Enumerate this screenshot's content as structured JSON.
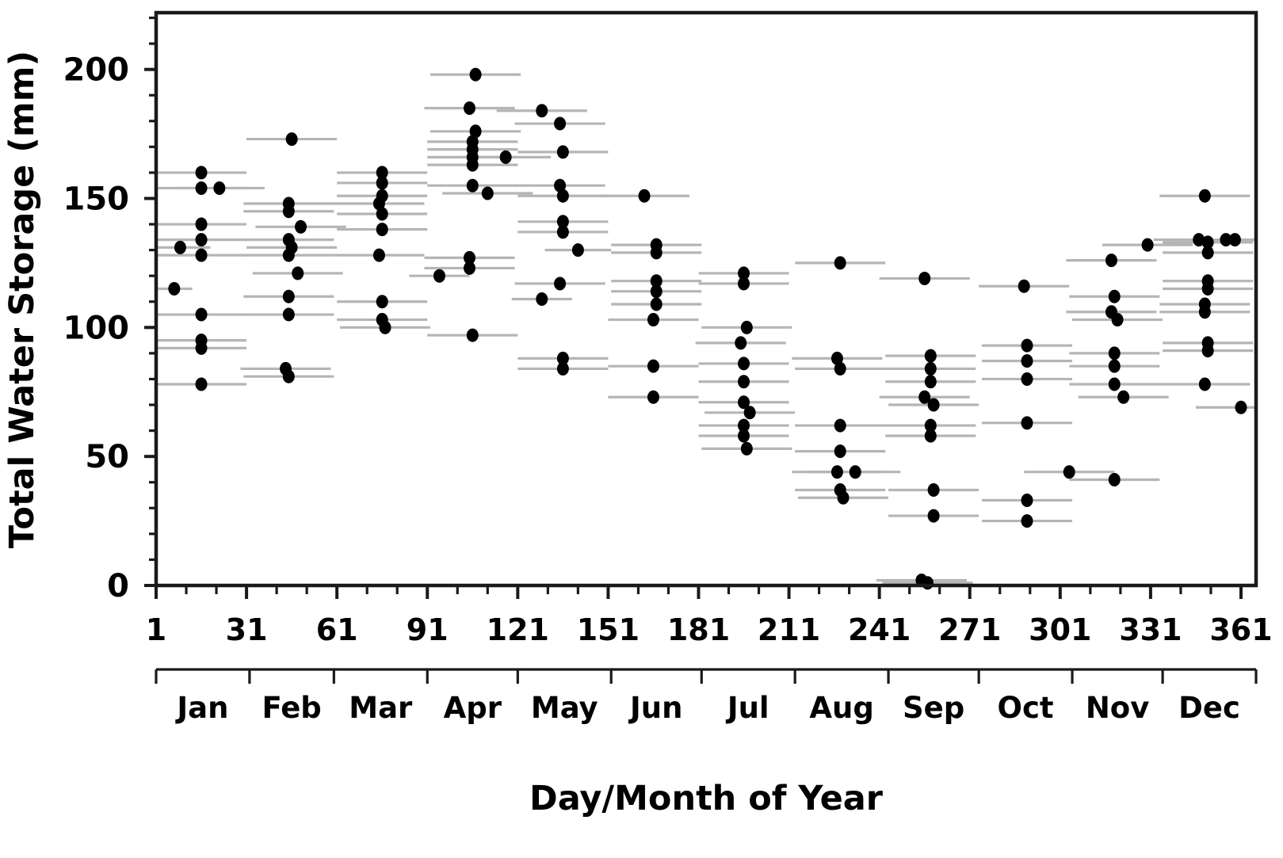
{
  "figure": {
    "xlabel": "Day/Month of Year",
    "ylabel": "Total Water Storage (mm)"
  },
  "chart_data": {
    "type": "scatter",
    "title": "",
    "xlabel": "Day/Month of Year",
    "ylabel": "Total Water Storage (mm)",
    "xlim": [
      1,
      366
    ],
    "ylim": [
      0,
      222
    ],
    "grid": false,
    "legend": null,
    "x_axis": {
      "major_tick_values": [
        1,
        31,
        61,
        91,
        121,
        151,
        181,
        211,
        241,
        271,
        301,
        331,
        361
      ],
      "minor_step_days": 10
    },
    "y_axis": {
      "major_tick_values": [
        0,
        50,
        100,
        150,
        200
      ],
      "minor_step_mm": 10
    },
    "month_axis": {
      "labels": [
        "Jan",
        "Feb",
        "Mar",
        "Apr",
        "May",
        "Jun",
        "Jul",
        "Aug",
        "Sep",
        "Oct",
        "Nov",
        "Dec"
      ],
      "boundaries": [
        1,
        32,
        60,
        91,
        121,
        152,
        182,
        213,
        244,
        274,
        305,
        335,
        366
      ]
    },
    "style": {
      "point_color": "#000000",
      "errorbar_color": "#b5b5b5",
      "axis_color": "#1a1a1a",
      "default_xerr_days": 15,
      "point_rx": 7.5,
      "point_ry": 8.5
    },
    "points_note": "each point = [day_of_year, total_water_storage_mm, optional_xerr_halfwidth_days]",
    "points": [
      [
        16,
        160
      ],
      [
        16,
        154
      ],
      [
        22,
        154
      ],
      [
        16,
        140
      ],
      [
        16,
        134
      ],
      [
        9,
        131,
        10
      ],
      [
        16,
        128
      ],
      [
        7,
        115,
        6
      ],
      [
        16,
        105
      ],
      [
        16,
        95
      ],
      [
        16,
        92
      ],
      [
        16,
        78
      ],
      [
        46,
        173
      ],
      [
        45,
        148
      ],
      [
        45,
        145
      ],
      [
        49,
        139
      ],
      [
        45,
        134
      ],
      [
        46,
        131
      ],
      [
        45,
        128
      ],
      [
        48,
        121
      ],
      [
        45,
        112
      ],
      [
        45,
        105
      ],
      [
        44,
        84
      ],
      [
        45,
        81
      ],
      [
        76,
        160
      ],
      [
        76,
        156
      ],
      [
        76,
        151
      ],
      [
        75,
        148
      ],
      [
        76,
        144
      ],
      [
        76,
        138
      ],
      [
        75,
        128
      ],
      [
        76,
        110
      ],
      [
        76,
        103
      ],
      [
        77,
        100
      ],
      [
        107,
        198
      ],
      [
        105,
        185
      ],
      [
        107,
        176
      ],
      [
        106,
        172
      ],
      [
        106,
        169
      ],
      [
        106,
        166
      ],
      [
        106,
        163
      ],
      [
        106,
        155
      ],
      [
        111,
        152
      ],
      [
        105,
        127
      ],
      [
        105,
        123
      ],
      [
        95,
        120,
        10
      ],
      [
        106,
        97
      ],
      [
        117,
        166
      ],
      [
        129,
        184
      ],
      [
        135,
        179
      ],
      [
        136,
        168
      ],
      [
        135,
        155
      ],
      [
        136,
        151
      ],
      [
        136,
        141
      ],
      [
        136,
        137
      ],
      [
        141,
        130,
        11
      ],
      [
        135,
        117
      ],
      [
        129,
        111,
        10
      ],
      [
        136,
        88
      ],
      [
        136,
        84
      ],
      [
        163,
        151
      ],
      [
        167,
        132
      ],
      [
        167,
        129
      ],
      [
        167,
        118
      ],
      [
        167,
        114
      ],
      [
        167,
        109
      ],
      [
        166,
        103
      ],
      [
        166,
        85
      ],
      [
        166,
        73
      ],
      [
        196,
        121
      ],
      [
        196,
        117
      ],
      [
        197,
        100
      ],
      [
        195,
        94
      ],
      [
        196,
        86
      ],
      [
        196,
        79
      ],
      [
        196,
        71
      ],
      [
        198,
        67
      ],
      [
        196,
        62
      ],
      [
        196,
        58
      ],
      [
        197,
        53
      ],
      [
        228,
        125
      ],
      [
        227,
        88
      ],
      [
        228,
        84
      ],
      [
        228,
        62
      ],
      [
        228,
        52
      ],
      [
        227,
        44
      ],
      [
        233,
        44
      ],
      [
        228,
        37
      ],
      [
        229,
        34
      ],
      [
        256,
        119
      ],
      [
        258,
        89
      ],
      [
        258,
        84
      ],
      [
        258,
        79
      ],
      [
        256,
        73
      ],
      [
        259,
        70
      ],
      [
        258,
        62
      ],
      [
        258,
        58
      ],
      [
        259,
        37
      ],
      [
        259,
        27
      ],
      [
        255,
        2
      ],
      [
        257,
        1
      ],
      [
        289,
        116
      ],
      [
        290,
        93
      ],
      [
        290,
        87
      ],
      [
        290,
        80
      ],
      [
        290,
        63
      ],
      [
        290,
        33
      ],
      [
        290,
        25
      ],
      [
        304,
        44
      ],
      [
        318,
        126
      ],
      [
        319,
        112
      ],
      [
        318,
        106
      ],
      [
        320,
        103
      ],
      [
        319,
        90
      ],
      [
        319,
        85
      ],
      [
        319,
        78
      ],
      [
        322,
        73
      ],
      [
        330,
        132
      ],
      [
        319,
        41
      ],
      [
        349,
        151
      ],
      [
        347,
        134
      ],
      [
        350,
        133
      ],
      [
        356,
        134
      ],
      [
        359,
        134
      ],
      [
        350,
        129
      ],
      [
        350,
        118
      ],
      [
        350,
        115
      ],
      [
        349,
        109
      ],
      [
        349,
        106
      ],
      [
        350,
        94
      ],
      [
        350,
        91
      ],
      [
        349,
        78
      ],
      [
        361,
        69
      ]
    ]
  }
}
